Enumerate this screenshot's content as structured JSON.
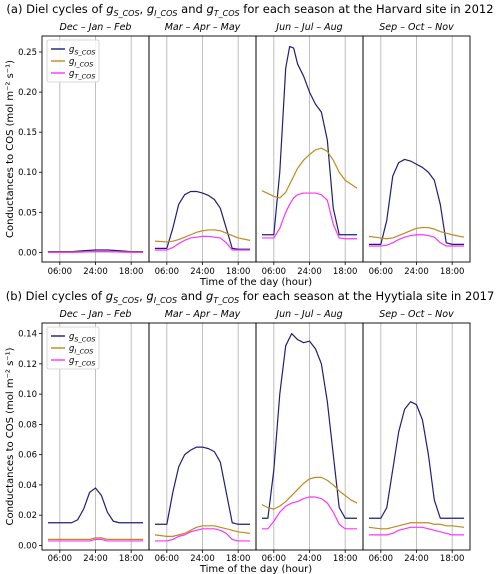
{
  "chart_data": [
    {
      "type": "line",
      "title": "(a) Diel cycles of g_S_COS, g_I_COS and g_T_COS for each season at the Harvard site in 2012",
      "title_parts": {
        "prefix": "(a) Diel cycles of ",
        "sym1": "g",
        "sub1": "S_COS",
        "sep1": ", ",
        "sym2": "g",
        "sub2": "I_COS",
        "sep2": " and ",
        "sym3": "g",
        "sub3": "T_COS",
        "suffix": " for each season at the Harvard site in 2012"
      },
      "ylabel": "Conductances to COS (mol m⁻² s⁻¹)",
      "xlabel": "Time of the day (hour)",
      "ylim": [
        -0.012,
        0.27
      ],
      "yticks": [
        0.0,
        0.05,
        0.1,
        0.15,
        0.2,
        0.25
      ],
      "ytick_labels": [
        "0.00",
        "0.05",
        "0.10",
        "0.15",
        "0.20",
        "0.25"
      ],
      "xticks": [
        6,
        24,
        42
      ],
      "xtick_labels": [
        "06:00",
        "24:00",
        "18:00"
      ],
      "xlim": [
        -3,
        51
      ],
      "legend": [
        "g",
        "g",
        "g"
      ],
      "legend_subs": [
        "S_COS",
        "I_COS",
        "T_COS"
      ],
      "legend_placement": "top-left",
      "panels": [
        {
          "name": "Dec – Jan – Feb",
          "x": [
            0,
            6,
            12,
            18,
            24,
            30,
            36,
            42,
            48
          ],
          "series": [
            {
              "name": "g_S_COS",
              "color": "#1f1f7a",
              "values": [
                0.001,
                0.001,
                0.001,
                0.002,
                0.003,
                0.003,
                0.002,
                0.001,
                0.001
              ]
            },
            {
              "name": "g_I_COS",
              "color": "#c08a1e",
              "values": [
                0.0005,
                0.0005,
                0.0005,
                0.0006,
                0.0007,
                0.0007,
                0.0006,
                0.0005,
                0.0005
              ]
            },
            {
              "name": "g_T_COS",
              "color": "#ff33ff",
              "values": [
                0.0,
                0.0,
                0.0,
                0.0005,
                0.001,
                0.001,
                0.0005,
                0.0,
                0.0
              ]
            }
          ]
        },
        {
          "name": "Mar – Apr – May",
          "x": [
            0,
            6,
            9,
            12,
            15,
            18,
            21,
            24,
            27,
            30,
            33,
            36,
            39,
            42,
            48
          ],
          "series": [
            {
              "name": "g_S_COS",
              "color": "#1f1f7a",
              "values": [
                0.005,
                0.005,
                0.03,
                0.06,
                0.072,
                0.076,
                0.076,
                0.074,
                0.071,
                0.066,
                0.055,
                0.03,
                0.005,
                0.004,
                0.004
              ]
            },
            {
              "name": "g_I_COS",
              "color": "#c08a1e",
              "values": [
                0.014,
                0.013,
                0.014,
                0.016,
                0.019,
                0.022,
                0.025,
                0.027,
                0.028,
                0.028,
                0.027,
                0.024,
                0.021,
                0.018,
                0.015
              ]
            },
            {
              "name": "g_T_COS",
              "color": "#ff33ff",
              "values": [
                0.003,
                0.003,
                0.006,
                0.011,
                0.015,
                0.018,
                0.019,
                0.02,
                0.02,
                0.019,
                0.018,
                0.012,
                0.003,
                0.003,
                0.003
              ]
            }
          ]
        },
        {
          "name": "Jun – Jul – Aug",
          "x": [
            0,
            6,
            9,
            12,
            14,
            16,
            18,
            21,
            24,
            27,
            30,
            33,
            36,
            39,
            42,
            48
          ],
          "series": [
            {
              "name": "g_S_COS",
              "color": "#1f1f7a",
              "values": [
                0.022,
                0.022,
                0.1,
                0.23,
                0.257,
                0.255,
                0.235,
                0.22,
                0.2,
                0.185,
                0.175,
                0.14,
                0.055,
                0.022,
                0.022,
                0.022
              ]
            },
            {
              "name": "g_I_COS",
              "color": "#c08a1e",
              "values": [
                0.077,
                0.07,
                0.068,
                0.075,
                0.085,
                0.095,
                0.105,
                0.115,
                0.122,
                0.128,
                0.13,
                0.126,
                0.115,
                0.1,
                0.09,
                0.08
              ]
            },
            {
              "name": "g_T_COS",
              "color": "#ff33ff",
              "values": [
                0.018,
                0.018,
                0.03,
                0.05,
                0.06,
                0.068,
                0.072,
                0.074,
                0.074,
                0.074,
                0.072,
                0.065,
                0.035,
                0.018,
                0.017,
                0.017
              ]
            }
          ]
        },
        {
          "name": "Sep – Oct – Nov",
          "x": [
            0,
            6,
            9,
            12,
            15,
            18,
            21,
            24,
            27,
            30,
            33,
            36,
            39,
            42,
            48
          ],
          "series": [
            {
              "name": "g_S_COS",
              "color": "#1f1f7a",
              "values": [
                0.01,
                0.01,
                0.04,
                0.095,
                0.112,
                0.116,
                0.114,
                0.11,
                0.106,
                0.1,
                0.09,
                0.06,
                0.012,
                0.01,
                0.01
              ]
            },
            {
              "name": "g_I_COS",
              "color": "#c08a1e",
              "values": [
                0.02,
                0.018,
                0.017,
                0.018,
                0.021,
                0.024,
                0.027,
                0.03,
                0.031,
                0.031,
                0.029,
                0.026,
                0.024,
                0.022,
                0.019
              ]
            },
            {
              "name": "g_T_COS",
              "color": "#ff33ff",
              "values": [
                0.008,
                0.008,
                0.009,
                0.012,
                0.016,
                0.019,
                0.021,
                0.022,
                0.022,
                0.021,
                0.019,
                0.012,
                0.008,
                0.008,
                0.008
              ]
            }
          ]
        }
      ]
    },
    {
      "type": "line",
      "title": "(b) Diel cycles of g_S_COS, g_I_COS and g_T_COS for each season at the Hyytiala site in 2017",
      "title_parts": {
        "prefix": "(b) Diel cycles of ",
        "sym1": "g",
        "sub1": "S_COS",
        "sep1": ", ",
        "sym2": "g",
        "sub2": "I_COS",
        "sep2": " and ",
        "sym3": "g",
        "sub3": "T_COS",
        "suffix": " for each season at the Hyytiala site in 2017"
      },
      "ylabel": "Conductances to COS (mol m⁻² s⁻¹)",
      "xlabel": "Time of the day (hour)",
      "ylim": [
        -0.003,
        0.147
      ],
      "yticks": [
        0.0,
        0.02,
        0.04,
        0.06,
        0.08,
        0.1,
        0.12,
        0.14
      ],
      "ytick_labels": [
        "0.00",
        "0.02",
        "0.04",
        "0.06",
        "0.08",
        "0.10",
        "0.12",
        "0.14"
      ],
      "xticks": [
        6,
        24,
        42
      ],
      "xtick_labels": [
        "06:00",
        "24:00",
        "18:00"
      ],
      "xlim": [
        -3,
        51
      ],
      "legend": [
        "g",
        "g",
        "g"
      ],
      "legend_subs": [
        "S_COS",
        "I_COS",
        "T_COS"
      ],
      "legend_placement": "top-left",
      "panels": [
        {
          "name": "Dec – Jan – Feb",
          "x": [
            0,
            6,
            12,
            15,
            18,
            21,
            24,
            27,
            30,
            33,
            36,
            42,
            48
          ],
          "series": [
            {
              "name": "g_S_COS",
              "color": "#1f1f7a",
              "values": [
                0.015,
                0.015,
                0.015,
                0.017,
                0.024,
                0.035,
                0.038,
                0.033,
                0.022,
                0.016,
                0.015,
                0.015,
                0.015
              ]
            },
            {
              "name": "g_I_COS",
              "color": "#c08a1e",
              "values": [
                0.004,
                0.004,
                0.004,
                0.004,
                0.004,
                0.004,
                0.005,
                0.005,
                0.004,
                0.004,
                0.004,
                0.004,
                0.004
              ]
            },
            {
              "name": "g_T_COS",
              "color": "#ff33ff",
              "values": [
                0.003,
                0.003,
                0.003,
                0.003,
                0.003,
                0.003,
                0.004,
                0.004,
                0.003,
                0.003,
                0.003,
                0.003,
                0.003
              ]
            }
          ]
        },
        {
          "name": "Mar – Apr – May",
          "x": [
            0,
            6,
            9,
            12,
            15,
            18,
            21,
            24,
            27,
            30,
            33,
            36,
            39,
            42,
            48
          ],
          "series": [
            {
              "name": "g_S_COS",
              "color": "#1f1f7a",
              "values": [
                0.014,
                0.014,
                0.035,
                0.052,
                0.06,
                0.063,
                0.065,
                0.065,
                0.064,
                0.062,
                0.055,
                0.035,
                0.015,
                0.014,
                0.014
              ]
            },
            {
              "name": "g_I_COS",
              "color": "#c08a1e",
              "values": [
                0.007,
                0.006,
                0.006,
                0.007,
                0.008,
                0.01,
                0.012,
                0.013,
                0.013,
                0.013,
                0.012,
                0.011,
                0.01,
                0.009,
                0.008
              ]
            },
            {
              "name": "g_T_COS",
              "color": "#ff33ff",
              "values": [
                0.003,
                0.003,
                0.004,
                0.006,
                0.007,
                0.009,
                0.01,
                0.011,
                0.011,
                0.011,
                0.01,
                0.008,
                0.004,
                0.003,
                0.003
              ]
            }
          ]
        },
        {
          "name": "Jun – Jul – Aug",
          "x": [
            0,
            3,
            6,
            9,
            12,
            15,
            18,
            21,
            24,
            27,
            30,
            33,
            36,
            39,
            42,
            45,
            48
          ],
          "series": [
            {
              "name": "g_S_COS",
              "color": "#1f1f7a",
              "values": [
                0.018,
                0.018,
                0.05,
                0.1,
                0.132,
                0.14,
                0.136,
                0.134,
                0.135,
                0.13,
                0.12,
                0.095,
                0.06,
                0.025,
                0.018,
                0.018,
                0.018
              ]
            },
            {
              "name": "g_I_COS",
              "color": "#c08a1e",
              "values": [
                0.027,
                0.025,
                0.024,
                0.026,
                0.029,
                0.033,
                0.037,
                0.041,
                0.044,
                0.045,
                0.045,
                0.043,
                0.04,
                0.036,
                0.033,
                0.03,
                0.028
              ]
            },
            {
              "name": "g_T_COS",
              "color": "#ff33ff",
              "values": [
                0.011,
                0.011,
                0.016,
                0.022,
                0.026,
                0.028,
                0.029,
                0.031,
                0.032,
                0.032,
                0.031,
                0.028,
                0.022,
                0.014,
                0.011,
                0.011,
                0.011
              ]
            }
          ]
        },
        {
          "name": "Sep – Oct – Nov",
          "x": [
            0,
            6,
            9,
            12,
            15,
            18,
            21,
            24,
            27,
            30,
            33,
            36,
            39,
            42,
            48
          ],
          "series": [
            {
              "name": "g_S_COS",
              "color": "#1f1f7a",
              "values": [
                0.018,
                0.018,
                0.025,
                0.05,
                0.075,
                0.09,
                0.095,
                0.093,
                0.083,
                0.06,
                0.03,
                0.018,
                0.018,
                0.018,
                0.018
              ]
            },
            {
              "name": "g_I_COS",
              "color": "#c08a1e",
              "values": [
                0.012,
                0.011,
                0.011,
                0.012,
                0.013,
                0.014,
                0.015,
                0.015,
                0.015,
                0.015,
                0.014,
                0.014,
                0.013,
                0.013,
                0.012
              ]
            },
            {
              "name": "g_T_COS",
              "color": "#ff33ff",
              "values": [
                0.007,
                0.007,
                0.007,
                0.008,
                0.01,
                0.011,
                0.012,
                0.012,
                0.012,
                0.011,
                0.01,
                0.009,
                0.008,
                0.007,
                0.007
              ]
            }
          ]
        }
      ]
    }
  ]
}
